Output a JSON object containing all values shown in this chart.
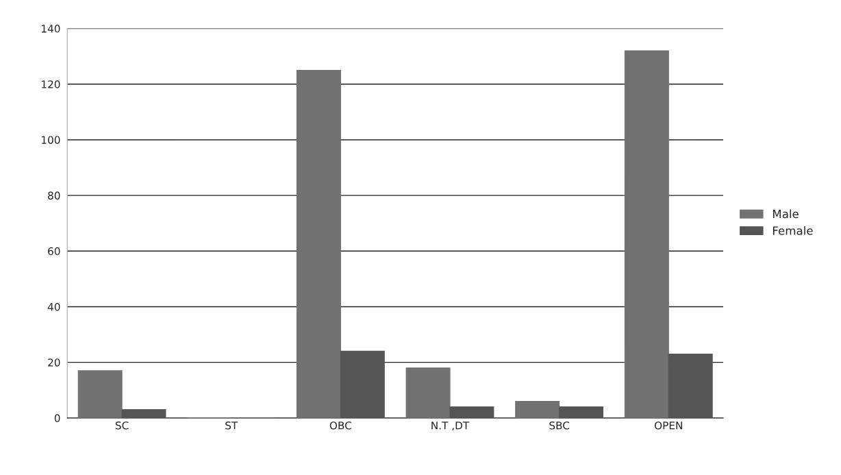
{
  "chart_data": {
    "type": "bar",
    "categories": [
      "SC",
      "ST",
      "OBC",
      "N.T ,DT",
      "SBC",
      "OPEN"
    ],
    "series": [
      {
        "name": "Male",
        "color": "#727272",
        "values": [
          17,
          0,
          125,
          18,
          6,
          132
        ]
      },
      {
        "name": "Female",
        "color": "#555555",
        "values": [
          3,
          0,
          24,
          4,
          4,
          23
        ]
      }
    ],
    "ylim": [
      0,
      140
    ],
    "yticks": [
      0,
      20,
      40,
      60,
      80,
      100,
      120,
      140
    ],
    "grid": "y",
    "legend": "right"
  }
}
